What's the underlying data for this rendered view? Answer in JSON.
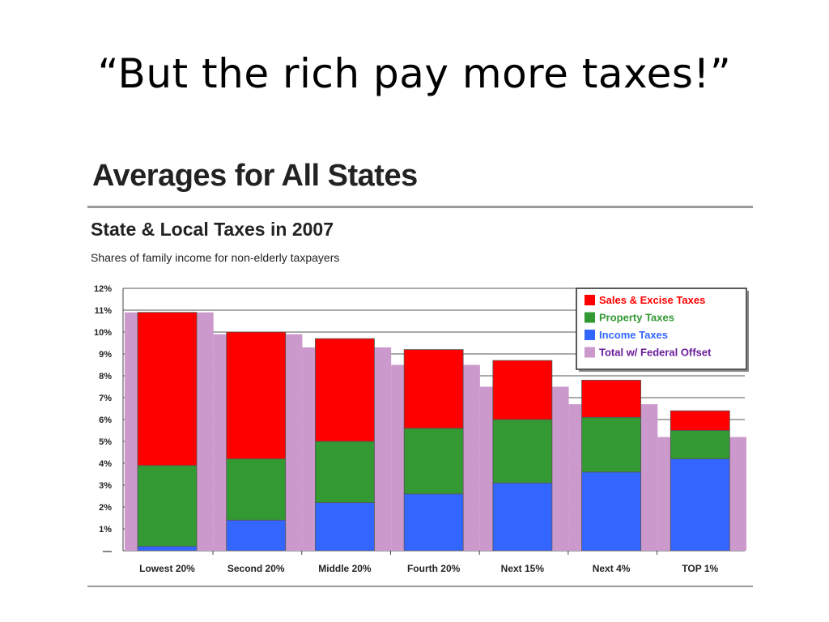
{
  "slide": {
    "title": "“But the rich pay more taxes!”"
  },
  "figure": {
    "heading": "Averages for All States"
  },
  "chart_data": {
    "type": "bar",
    "title": "State & Local Taxes in 2007",
    "subtitle": "Shares of family income for non-elderly taxpayers",
    "categories": [
      "Lowest 20%",
      "Second 20%",
      "Middle 20%",
      "Fourth 20%",
      "Next 15%",
      "Next 4%",
      "TOP 1%"
    ],
    "stacked": true,
    "series": [
      {
        "name": "Income Taxes",
        "color": "#3366ff",
        "values": [
          0.2,
          1.4,
          2.2,
          2.6,
          3.1,
          3.6,
          4.2
        ]
      },
      {
        "name": "Property Taxes",
        "color": "#339933",
        "values": [
          3.7,
          2.8,
          2.8,
          3.0,
          2.9,
          2.5,
          1.3
        ]
      },
      {
        "name": "Sales & Excise Taxes",
        "color": "#ff0000",
        "values": [
          7.0,
          5.8,
          4.7,
          3.6,
          2.7,
          1.7,
          0.9
        ]
      }
    ],
    "offset_series": {
      "name": "Total w/ Federal Offset",
      "color": "#cc99cc",
      "values": [
        10.9,
        9.9,
        9.3,
        8.5,
        7.5,
        6.7,
        5.2
      ]
    },
    "legend": [
      {
        "label": "Sales & Excise Taxes",
        "color": "#ff0000",
        "text_color": "#ff0000"
      },
      {
        "label": "Property Taxes",
        "color": "#339933",
        "text_color": "#339933"
      },
      {
        "label": "Income Taxes",
        "color": "#3366ff",
        "text_color": "#3366ff"
      },
      {
        "label": "Total w/ Federal Offset",
        "color": "#cc99cc",
        "text_color": "#6a1b9a"
      }
    ],
    "legend_position": "top-right",
    "y_ticks": [
      "—",
      "1%",
      "2%",
      "3%",
      "4%",
      "5%",
      "6%",
      "7%",
      "8%",
      "9%",
      "10%",
      "11%",
      "12%"
    ],
    "ylim": [
      0,
      12
    ],
    "grid": true
  }
}
